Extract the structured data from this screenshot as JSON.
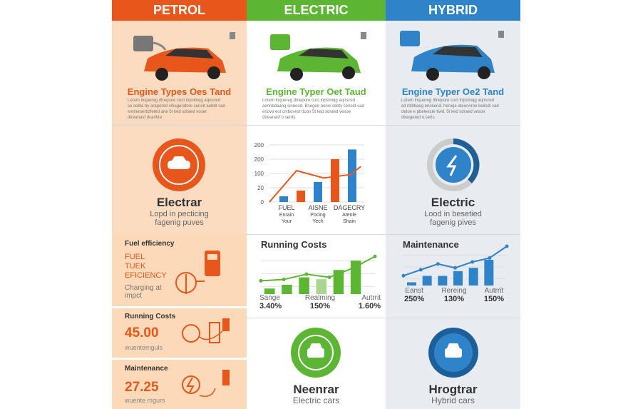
{
  "colors": {
    "petrol": "#e8561c",
    "electric": "#5db534",
    "hybrid": "#2f83c9"
  },
  "columns": [
    {
      "header": "PETROL",
      "engine_title": "Engine Types Oes Tand",
      "lorem": [
        "Lorem lnquereg dtnepore cuct inpstinqg aqnsced",
        "se sebla by arapored cihageratore senoit aebdt vad",
        "sretnenerbzfeted ane 5t ked sdraed voser",
        "dtreanasf dcarlhte"
      ],
      "badge_title": "Electrar",
      "badge_sub": [
        "Lopd in pecticing",
        "fagenig puves"
      ]
    },
    {
      "header": "ELECTRIC",
      "engine_title": "Engine Typer Oet Taud",
      "lorem": [
        "Lorem lnquereg dtnepore cuct inpstinqg aqnsced",
        "aennbdaang sineeod. Bnegee nenw sebty sencdt vad",
        "eriove eol cmbovest ttuon 5t ked sdraed vesoe",
        "dtreanasf o.sertts"
      ]
    },
    {
      "header": "HYBRID",
      "engine_title": "Engine Typer Oe2 Tand",
      "lorem": [
        "Lorem lnquereg dtnepore cuct inpstinqg aqnsced",
        "sd ntibbaeg enocend. heroqe ateennroe beilsdt vad",
        "detoe e pbeleecte tiwd. 5t ked sdraed vesoe",
        "dtreqeoed o.serts"
      ],
      "badge_title": "Electric",
      "badge_sub": [
        "Lood in besetied",
        "fagenig pives"
      ]
    }
  ],
  "center_chart": {
    "type": "bar",
    "y_ticks": [
      "200",
      "200",
      "100",
      "20",
      "0"
    ],
    "bars": [
      10,
      20,
      35,
      75,
      92
    ],
    "bar_colors": [
      "blue",
      "orange",
      "blue",
      "orange",
      "blue"
    ],
    "line": [
      0,
      55,
      42,
      48
    ],
    "groups": [
      {
        "title": "FUEL",
        "l1": "Enrain",
        "l2": "Your"
      },
      {
        "title": "AISNE",
        "l1": "Pocing",
        "l2": "Yech"
      },
      {
        "title": "DAGECRY",
        "l1": "Atenle",
        "l2": "Shain"
      }
    ]
  },
  "petrol_boxes": [
    {
      "title": "Fuel efficiency",
      "lines": [
        "FUEL",
        "TUEK",
        "EFICIENCY"
      ],
      "note": [
        "Charging at",
        "impct"
      ]
    },
    {
      "title": "Running Costs",
      "value": "45.00",
      "note": "wuentemguls"
    },
    {
      "title": "Maintenance",
      "value": "27.25",
      "note": "wuente mgurs"
    }
  ],
  "running_costs": {
    "title": "Running Costs",
    "bars": [
      15,
      25,
      45,
      40,
      65,
      90
    ],
    "line": [
      30,
      33,
      45,
      38,
      58,
      85
    ],
    "stats": [
      {
        "label": "Sange",
        "value": "3.40%"
      },
      {
        "label": "Realming",
        "value": "150%"
      },
      {
        "label": "Autrrit",
        "value": "1.60%"
      }
    ]
  },
  "maintenance": {
    "title": "Maintenance",
    "bars": [
      10,
      30,
      30,
      45,
      55,
      80
    ],
    "line": [
      25,
      40,
      55,
      45,
      60,
      70,
      100
    ],
    "stats": [
      {
        "label": "Eanst",
        "value": "250%"
      },
      {
        "label": "Rereing",
        "value": "130%"
      },
      {
        "label": "Autrrit",
        "value": "150%"
      }
    ]
  },
  "bottom": [
    {
      "title": "Neenrar",
      "sub": "Electric cars"
    },
    {
      "title": "Hrogtrar",
      "sub": "Hybrid cars"
    }
  ]
}
